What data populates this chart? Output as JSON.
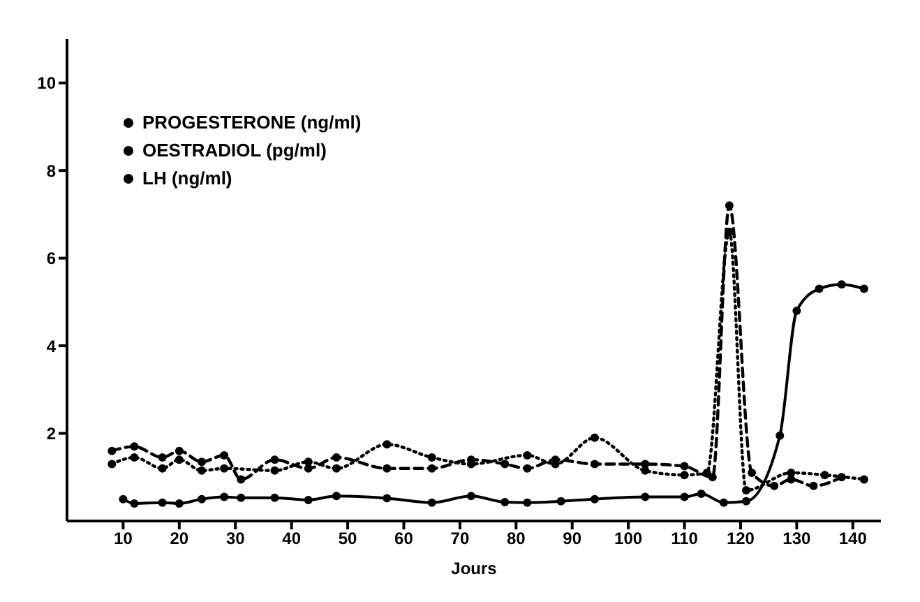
{
  "chart_data": {
    "type": "line",
    "xlabel": "Jours",
    "xlim": [
      0,
      145
    ],
    "xticks": [
      10,
      20,
      30,
      40,
      50,
      60,
      70,
      80,
      90,
      100,
      110,
      120,
      130,
      140
    ],
    "ylim": [
      0,
      11
    ],
    "yticks": [
      2,
      4,
      6,
      8,
      10
    ],
    "grid": false,
    "legend": "top left",
    "marker": "circle",
    "series": [
      {
        "name": "PROGESTERONE (ng/ml)",
        "color": "#000000",
        "line_style": "solid",
        "x": [
          10,
          12,
          17,
          20,
          24,
          28,
          31,
          37,
          43,
          48,
          57,
          65,
          72,
          78,
          82,
          88,
          94,
          103,
          110,
          113,
          117,
          121,
          127,
          130,
          134,
          138,
          142
        ],
        "values": [
          0.5,
          0.4,
          0.42,
          0.4,
          0.5,
          0.55,
          0.53,
          0.53,
          0.48,
          0.57,
          0.52,
          0.42,
          0.57,
          0.43,
          0.42,
          0.45,
          0.5,
          0.55,
          0.55,
          0.62,
          0.42,
          0.45,
          1.95,
          4.8,
          5.3,
          5.4,
          5.3
        ]
      },
      {
        "name": "OESTRADIOL (pg/ml)",
        "color": "#000000",
        "line_style": "dotted",
        "x": [
          8,
          12,
          17,
          20,
          24,
          28,
          37,
          43,
          48,
          57,
          65,
          72,
          82,
          87,
          94,
          103,
          110,
          114,
          118,
          121,
          129,
          135,
          142
        ],
        "values": [
          1.3,
          1.45,
          1.2,
          1.4,
          1.15,
          1.2,
          1.15,
          1.35,
          1.2,
          1.75,
          1.45,
          1.3,
          1.5,
          1.3,
          1.9,
          1.15,
          1.05,
          1.1,
          6.6,
          0.7,
          1.1,
          1.05,
          0.95
        ]
      },
      {
        "name": "LH (ng/ml)",
        "color": "#000000",
        "line_style": "dashed",
        "x": [
          8,
          12,
          17,
          20,
          24,
          28,
          31,
          37,
          43,
          48,
          57,
          65,
          72,
          78,
          82,
          87,
          94,
          103,
          110,
          115,
          118,
          122,
          126,
          129,
          133,
          138
        ],
        "values": [
          1.6,
          1.7,
          1.45,
          1.6,
          1.35,
          1.5,
          0.95,
          1.4,
          1.2,
          1.45,
          1.2,
          1.2,
          1.4,
          1.3,
          1.2,
          1.4,
          1.3,
          1.3,
          1.25,
          1.0,
          7.2,
          1.1,
          0.8,
          0.95,
          0.8,
          1.0
        ]
      }
    ]
  }
}
